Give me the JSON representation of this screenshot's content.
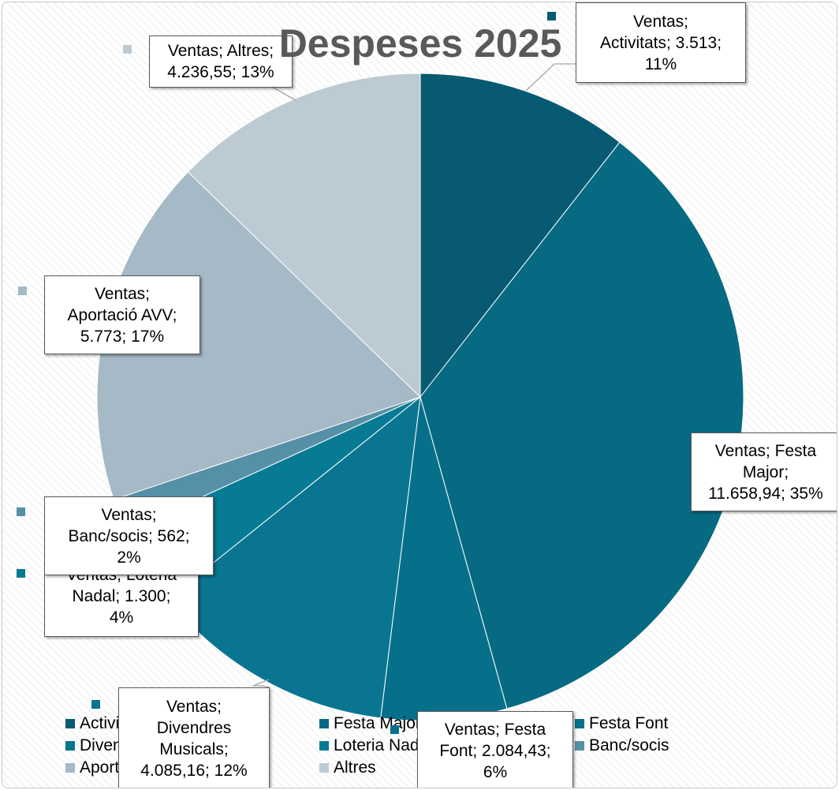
{
  "chart_data": {
    "type": "pie",
    "title": "Despeses 2025",
    "series_name": "Ventas",
    "slices": [
      {
        "label": "Activitats",
        "value": 3513,
        "percent": "11%",
        "value_text": "3.513",
        "color": "#075a72"
      },
      {
        "label": "Festa Major",
        "value": 11658.94,
        "percent": "35%",
        "value_text": "11.658,94",
        "color": "#066a82"
      },
      {
        "label": "Festa Font",
        "value": 2084.43,
        "percent": "6%",
        "value_text": "2.084,43",
        "color": "#06708a"
      },
      {
        "label": "Divendres Musicals",
        "value": 4085.16,
        "percent": "12%",
        "value_text": "4.085,16",
        "color": "#0a7590"
      },
      {
        "label": "Loteria Nadal",
        "value": 1300,
        "percent": "4%",
        "value_text": "1.300",
        "color": "#077b94"
      },
      {
        "label": "Banc/socis",
        "value": 562,
        "percent": "2%",
        "value_text": "562",
        "color": "#5590a6"
      },
      {
        "label": "Aportació AVV",
        "value": 5773,
        "percent": "17%",
        "value_text": "5.773",
        "color": "#a5b9c6"
      },
      {
        "label": "Altres",
        "value": 4236.55,
        "percent": "13%",
        "value_text": "4.236,55",
        "color": "#bccad4"
      }
    ],
    "data_labels": [
      "Ventas;\nActivitats; 3.513;\n11%",
      "Ventas; Festa\nMajor;\n11.658,94; 35%",
      "Ventas; Festa\nFont; 2.084,43;\n6%",
      "Ventas;\nDivendres\nMusicals;\n4.085,16; 12%",
      "Ventas; Loteria\nNadal; 1.300;\n4%",
      "Ventas;\nBanc/socis; 562;\n2%",
      "Ventas;\nAportació AVV;\n5.773; 17%",
      "Ventas; Altres;\n4.236,55; 13%"
    ],
    "legend_position": "bottom",
    "legend": [
      "Activitats",
      "Festa Major",
      "Festa Font",
      "Divendres Musicals",
      "Loteria Nadal",
      "Banc/socis",
      "Aportació AVV",
      "Altres"
    ]
  }
}
